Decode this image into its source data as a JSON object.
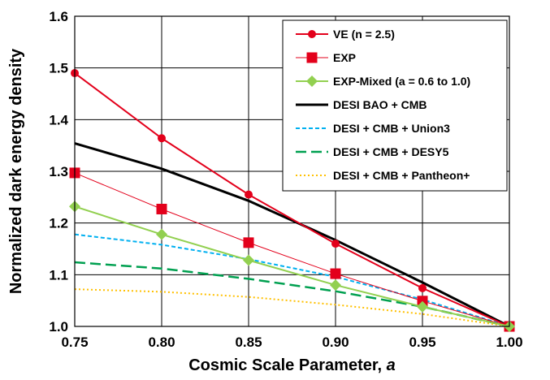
{
  "chart_data": {
    "type": "line",
    "xlabel_main": "Cosmic Scale Parameter, ",
    "xlabel_italic": "a",
    "ylabel": "Normalized dark energy density",
    "xlim": [
      0.75,
      1.0
    ],
    "ylim": [
      1.0,
      1.6
    ],
    "x_ticks": [
      "0.75",
      "0.80",
      "0.85",
      "0.90",
      "0.95",
      "1.00"
    ],
    "y_ticks": [
      "1.0",
      "1.1",
      "1.2",
      "1.3",
      "1.4",
      "1.5",
      "1.6"
    ],
    "grid": true,
    "legend_position": "top-right",
    "series": [
      {
        "name": "VE (n = 2.5)",
        "color": "#e3001b",
        "marker": "circle",
        "line_style": "solid",
        "line_width": 2,
        "x": [
          0.75,
          0.8,
          0.85,
          0.9,
          0.95,
          1.0
        ],
        "y": [
          1.49,
          1.364,
          1.255,
          1.16,
          1.074,
          1.0
        ]
      },
      {
        "name": "EXP",
        "color": "#e3001b",
        "marker": "square",
        "line_style": "solid",
        "line_width": 1,
        "x": [
          0.75,
          0.8,
          0.85,
          0.9,
          0.95,
          1.0
        ],
        "y": [
          1.297,
          1.227,
          1.162,
          1.102,
          1.049,
          1.0
        ]
      },
      {
        "name": "EXP-Mixed (a = 0.6 to 1.0)",
        "color": "#92d050",
        "marker": "diamond",
        "line_style": "solid",
        "line_width": 2,
        "x": [
          0.75,
          0.8,
          0.85,
          0.9,
          0.95,
          1.0
        ],
        "y": [
          1.232,
          1.178,
          1.128,
          1.08,
          1.038,
          1.0
        ]
      },
      {
        "name": "DESI BAO + CMB",
        "color": "#000000",
        "marker": "none",
        "line_style": "solid",
        "line_width": 3,
        "x": [
          0.75,
          0.8,
          0.85,
          0.9,
          0.95,
          1.0
        ],
        "y": [
          1.354,
          1.305,
          1.243,
          1.167,
          1.085,
          1.0
        ]
      },
      {
        "name": "DESI + CMB + Union3",
        "color": "#00b0f0",
        "marker": "none",
        "line_style": "dashed",
        "line_width": 2,
        "x": [
          0.75,
          0.8,
          0.85,
          0.9,
          0.95,
          1.0
        ],
        "y": [
          1.178,
          1.158,
          1.13,
          1.096,
          1.052,
          1.0
        ]
      },
      {
        "name": "DESI + CMB + DESY5",
        "color": "#00a050",
        "marker": "none",
        "line_style": "longdash",
        "line_width": 2.5,
        "x": [
          0.75,
          0.8,
          0.85,
          0.9,
          0.95,
          1.0
        ],
        "y": [
          1.124,
          1.112,
          1.092,
          1.068,
          1.038,
          1.0
        ]
      },
      {
        "name": "DESI + CMB + Pantheon+",
        "color": "#ffc000",
        "marker": "none",
        "line_style": "dotted",
        "line_width": 2,
        "x": [
          0.75,
          0.8,
          0.85,
          0.9,
          0.95,
          1.0
        ],
        "y": [
          1.072,
          1.067,
          1.057,
          1.042,
          1.024,
          1.0
        ]
      }
    ]
  }
}
